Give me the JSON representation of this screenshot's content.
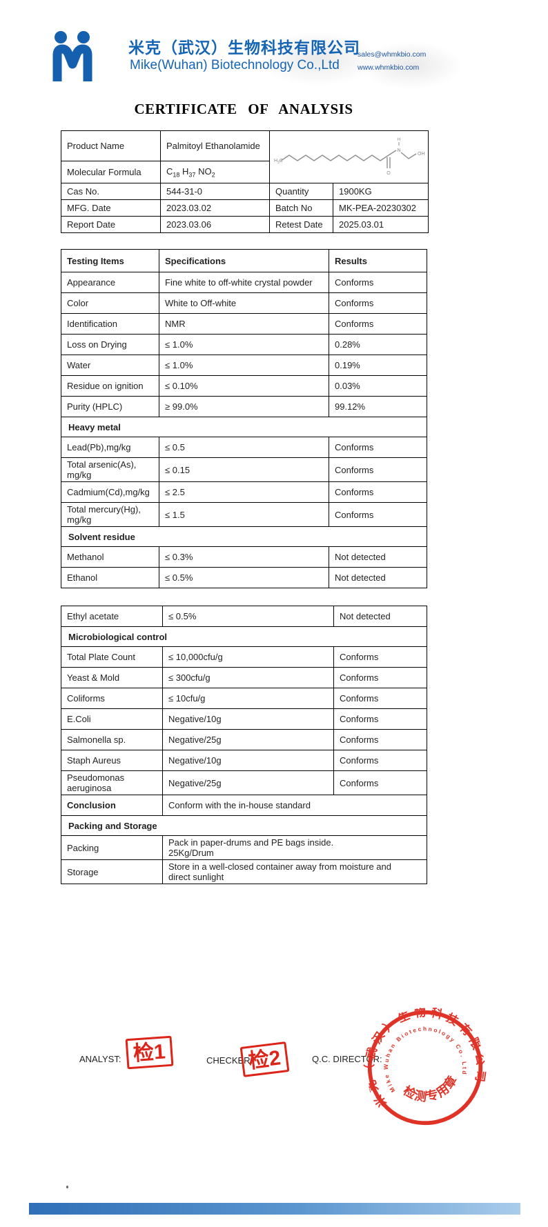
{
  "header": {
    "company_cn": "米克（武汉）生物科技有限公司",
    "company_en": "Mike(Wuhan) Biotechnology Co.,Ltd",
    "email": "sales@whmkbio.com",
    "website": "www.whmkbio.com",
    "brand_color": "#1565b4"
  },
  "title": "CERTIFICATE OF ANALYSIS",
  "product_info": {
    "product_name_label": "Product Name",
    "product_name": "Palmitoyl Ethanolamide",
    "formula_label": "Molecular Formula",
    "formula": {
      "c": "C",
      "c_sub": "18",
      "h": "H",
      "h_sub": "37",
      "no": "NO",
      "no_sub": "2"
    },
    "cas_label": "Cas No.",
    "cas": "544-31-0",
    "quantity_label": "Quantity",
    "quantity": "1900KG",
    "mfg_label": "MFG. Date",
    "mfg": "2023.03.02",
    "batch_label": "Batch No",
    "batch": "MK-PEA-20230302",
    "report_label": "Report Date",
    "report": "2023.03.06",
    "retest_label": "Retest Date",
    "retest": "2025.03.01"
  },
  "structure": {
    "h3c_main": "H",
    "h3c_sub": "3",
    "h3c_tail": "C",
    "n": "N",
    "h": "H",
    "oh": "OH",
    "o": "O"
  },
  "qc1": {
    "columns": [
      "Testing Items",
      "Specifications",
      "Results"
    ],
    "rows": [
      {
        "type": "data",
        "item": "Appearance",
        "spec": "Fine white to off-white crystal powder",
        "result": "Conforms"
      },
      {
        "type": "data",
        "item": "Color",
        "spec": "White to Off-white",
        "result": "Conforms"
      },
      {
        "type": "data",
        "item": "Identification",
        "spec": "NMR",
        "result": "Conforms"
      },
      {
        "type": "data",
        "item": "Loss on Drying",
        "spec": "≤ 1.0%",
        "result": "0.28%"
      },
      {
        "type": "data",
        "item": "Water",
        "spec": "≤ 1.0%",
        "result": "0.19%"
      },
      {
        "type": "data",
        "item": "Residue on ignition",
        "spec": "≤ 0.10%",
        "result": "0.03%"
      },
      {
        "type": "data",
        "item": "Purity (HPLC)",
        "spec": "≥ 99.0%",
        "result": "99.12%"
      },
      {
        "type": "section",
        "item": "Heavy metal"
      },
      {
        "type": "data",
        "item": "Lead(Pb),mg/kg",
        "spec": "≤ 0.5",
        "result": "Conforms"
      },
      {
        "type": "data",
        "item": "Total arsenic(As), mg/kg",
        "spec": "≤ 0.15",
        "result": "Conforms"
      },
      {
        "type": "data",
        "item": "Cadmium(Cd),mg/kg",
        "spec": "≤ 2.5",
        "result": "Conforms"
      },
      {
        "type": "data",
        "item": "Total mercury(Hg), mg/kg",
        "spec": "≤ 1.5",
        "result": "Conforms"
      },
      {
        "type": "section",
        "item": "Solvent residue"
      },
      {
        "type": "data",
        "item": "Methanol",
        "spec": "≤ 0.3%",
        "result": "Not detected"
      },
      {
        "type": "data",
        "item": "Ethanol",
        "spec": "≤ 0.5%",
        "result": "Not detected"
      }
    ]
  },
  "qc2": {
    "rows": [
      {
        "type": "data",
        "item": "Ethyl acetate",
        "spec": "≤ 0.5%",
        "result": "Not detected"
      },
      {
        "type": "section",
        "item": "Microbiological control"
      },
      {
        "type": "data",
        "item": "Total Plate Count",
        "spec": "≤ 10,000cfu/g",
        "result": "Conforms"
      },
      {
        "type": "data",
        "item": "Yeast & Mold",
        "spec": "≤ 300cfu/g",
        "result": "Conforms"
      },
      {
        "type": "data",
        "item": "Coliforms",
        "spec": "≤ 10cfu/g",
        "result": "Conforms"
      },
      {
        "type": "data",
        "item": "E.Coli",
        "spec": "Negative/10g",
        "result": "Conforms"
      },
      {
        "type": "data",
        "item": "Salmonella sp.",
        "spec": "Negative/25g",
        "result": "Conforms"
      },
      {
        "type": "data",
        "item": "Staph Aureus",
        "spec": "Negative/10g",
        "result": "Conforms"
      },
      {
        "type": "data",
        "item": "Pseudomonas aeruginosa",
        "spec": "Negative/25g",
        "result": "Conforms"
      },
      {
        "type": "merged",
        "bold": true,
        "item": "Conclusion",
        "spec": "Conform with the in-house standard"
      },
      {
        "type": "section",
        "item": "Packing and Storage"
      },
      {
        "type": "merged",
        "item": "Packing",
        "spec_lines": [
          "Pack in paper-drums and PE bags inside.",
          "25Kg/Drum"
        ]
      },
      {
        "type": "merged",
        "item": "Storage",
        "spec_lines": [
          "Store in a well-closed container away  from moisture and",
          "direct sunlight"
        ]
      }
    ]
  },
  "signatures": {
    "analyst_label": "ANALYST:",
    "checker_label": "CHECKER:",
    "qc_label": "Q.C. DIRECTOR:",
    "stamp1": "检1",
    "stamp2": "检2",
    "stamp_color": "#dd2418"
  },
  "seal": {
    "ring_cn": "米克（武汉）生物科技有限公司",
    "ring_en": "Mike Wuhan Biotechnology Co. Ltd",
    "center": "检测专用章",
    "color": "#de2418"
  }
}
